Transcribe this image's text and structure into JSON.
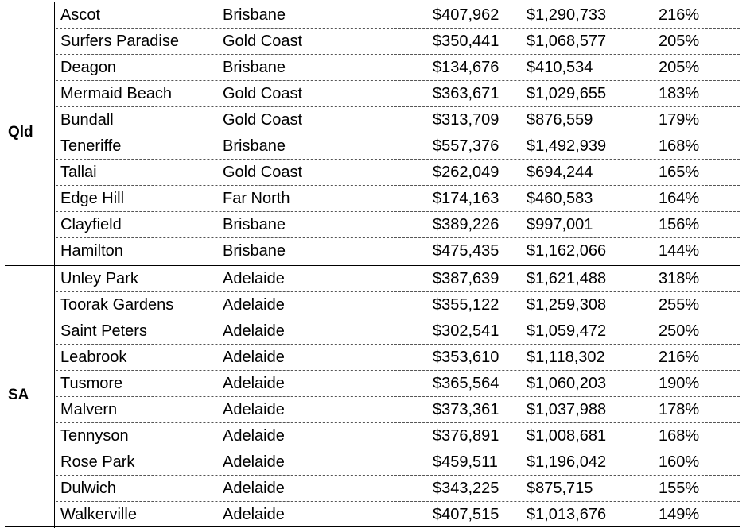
{
  "groups": [
    {
      "state": "Qld",
      "rows": [
        {
          "suburb": "Ascot",
          "region": "Brisbane",
          "value_before": "$407,962",
          "value_after": "$1,290,733",
          "change": "216%"
        },
        {
          "suburb": "Surfers Paradise",
          "region": "Gold Coast",
          "value_before": "$350,441",
          "value_after": "$1,068,577",
          "change": "205%"
        },
        {
          "suburb": "Deagon",
          "region": "Brisbane",
          "value_before": "$134,676",
          "value_after": "$410,534",
          "change": "205%"
        },
        {
          "suburb": "Mermaid Beach",
          "region": "Gold Coast",
          "value_before": "$363,671",
          "value_after": "$1,029,655",
          "change": "183%"
        },
        {
          "suburb": "Bundall",
          "region": "Gold Coast",
          "value_before": "$313,709",
          "value_after": "$876,559",
          "change": "179%"
        },
        {
          "suburb": "Teneriffe",
          "region": "Brisbane",
          "value_before": "$557,376",
          "value_after": "$1,492,939",
          "change": "168%"
        },
        {
          "suburb": "Tallai",
          "region": "Gold Coast",
          "value_before": "$262,049",
          "value_after": "$694,244",
          "change": "165%"
        },
        {
          "suburb": "Edge Hill",
          "region": "Far North",
          "value_before": "$174,163",
          "value_after": "$460,583",
          "change": "164%"
        },
        {
          "suburb": "Clayfield",
          "region": "Brisbane",
          "value_before": "$389,226",
          "value_after": "$997,001",
          "change": "156%"
        },
        {
          "suburb": "Hamilton",
          "region": "Brisbane",
          "value_before": "$475,435",
          "value_after": "$1,162,066",
          "change": "144%"
        }
      ]
    },
    {
      "state": "SA",
      "rows": [
        {
          "suburb": "Unley Park",
          "region": "Adelaide",
          "value_before": "$387,639",
          "value_after": "$1,621,488",
          "change": "318%"
        },
        {
          "suburb": "Toorak Gardens",
          "region": "Adelaide",
          "value_before": "$355,122",
          "value_after": "$1,259,308",
          "change": "255%"
        },
        {
          "suburb": "Saint Peters",
          "region": "Adelaide",
          "value_before": "$302,541",
          "value_after": "$1,059,472",
          "change": "250%"
        },
        {
          "suburb": "Leabrook",
          "region": "Adelaide",
          "value_before": "$353,610",
          "value_after": "$1,118,302",
          "change": "216%"
        },
        {
          "suburb": "Tusmore",
          "region": "Adelaide",
          "value_before": "$365,564",
          "value_after": "$1,060,203",
          "change": "190%"
        },
        {
          "suburb": "Malvern",
          "region": "Adelaide",
          "value_before": "$373,361",
          "value_after": "$1,037,988",
          "change": "178%"
        },
        {
          "suburb": "Tennyson",
          "region": "Adelaide",
          "value_before": "$376,891",
          "value_after": "$1,008,681",
          "change": "168%"
        },
        {
          "suburb": "Rose Park",
          "region": "Adelaide",
          "value_before": "$459,511",
          "value_after": "$1,196,042",
          "change": "160%"
        },
        {
          "suburb": "Dulwich",
          "region": "Adelaide",
          "value_before": "$343,225",
          "value_after": "$875,715",
          "change": "155%"
        },
        {
          "suburb": "Walkerville",
          "region": "Adelaide",
          "value_before": "$407,515",
          "value_after": "$1,013,676",
          "change": "149%"
        }
      ]
    }
  ]
}
